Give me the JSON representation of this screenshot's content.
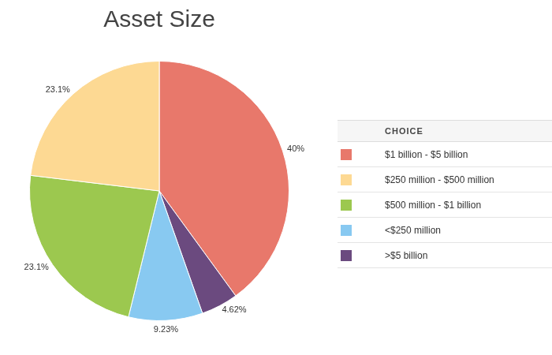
{
  "chart_data": {
    "type": "pie",
    "title": "Asset Size",
    "categories": [
      "$1 billion - $5 billion",
      ">$5 billion",
      "<$250 million",
      "$500 million - $1 billion",
      "$250 million - $500 million"
    ],
    "values": [
      40,
      4.62,
      9.23,
      23.1,
      23.1
    ],
    "value_labels": [
      "40%",
      "4.62%",
      "9.23%",
      "23.1%",
      "23.1%"
    ],
    "colors": [
      "#e8786b",
      "#6b4a7f",
      "#88c9f1",
      "#9cc84f",
      "#fdd993"
    ],
    "data_labels": true,
    "legend": "right",
    "legend_title": "CHOICE"
  }
}
